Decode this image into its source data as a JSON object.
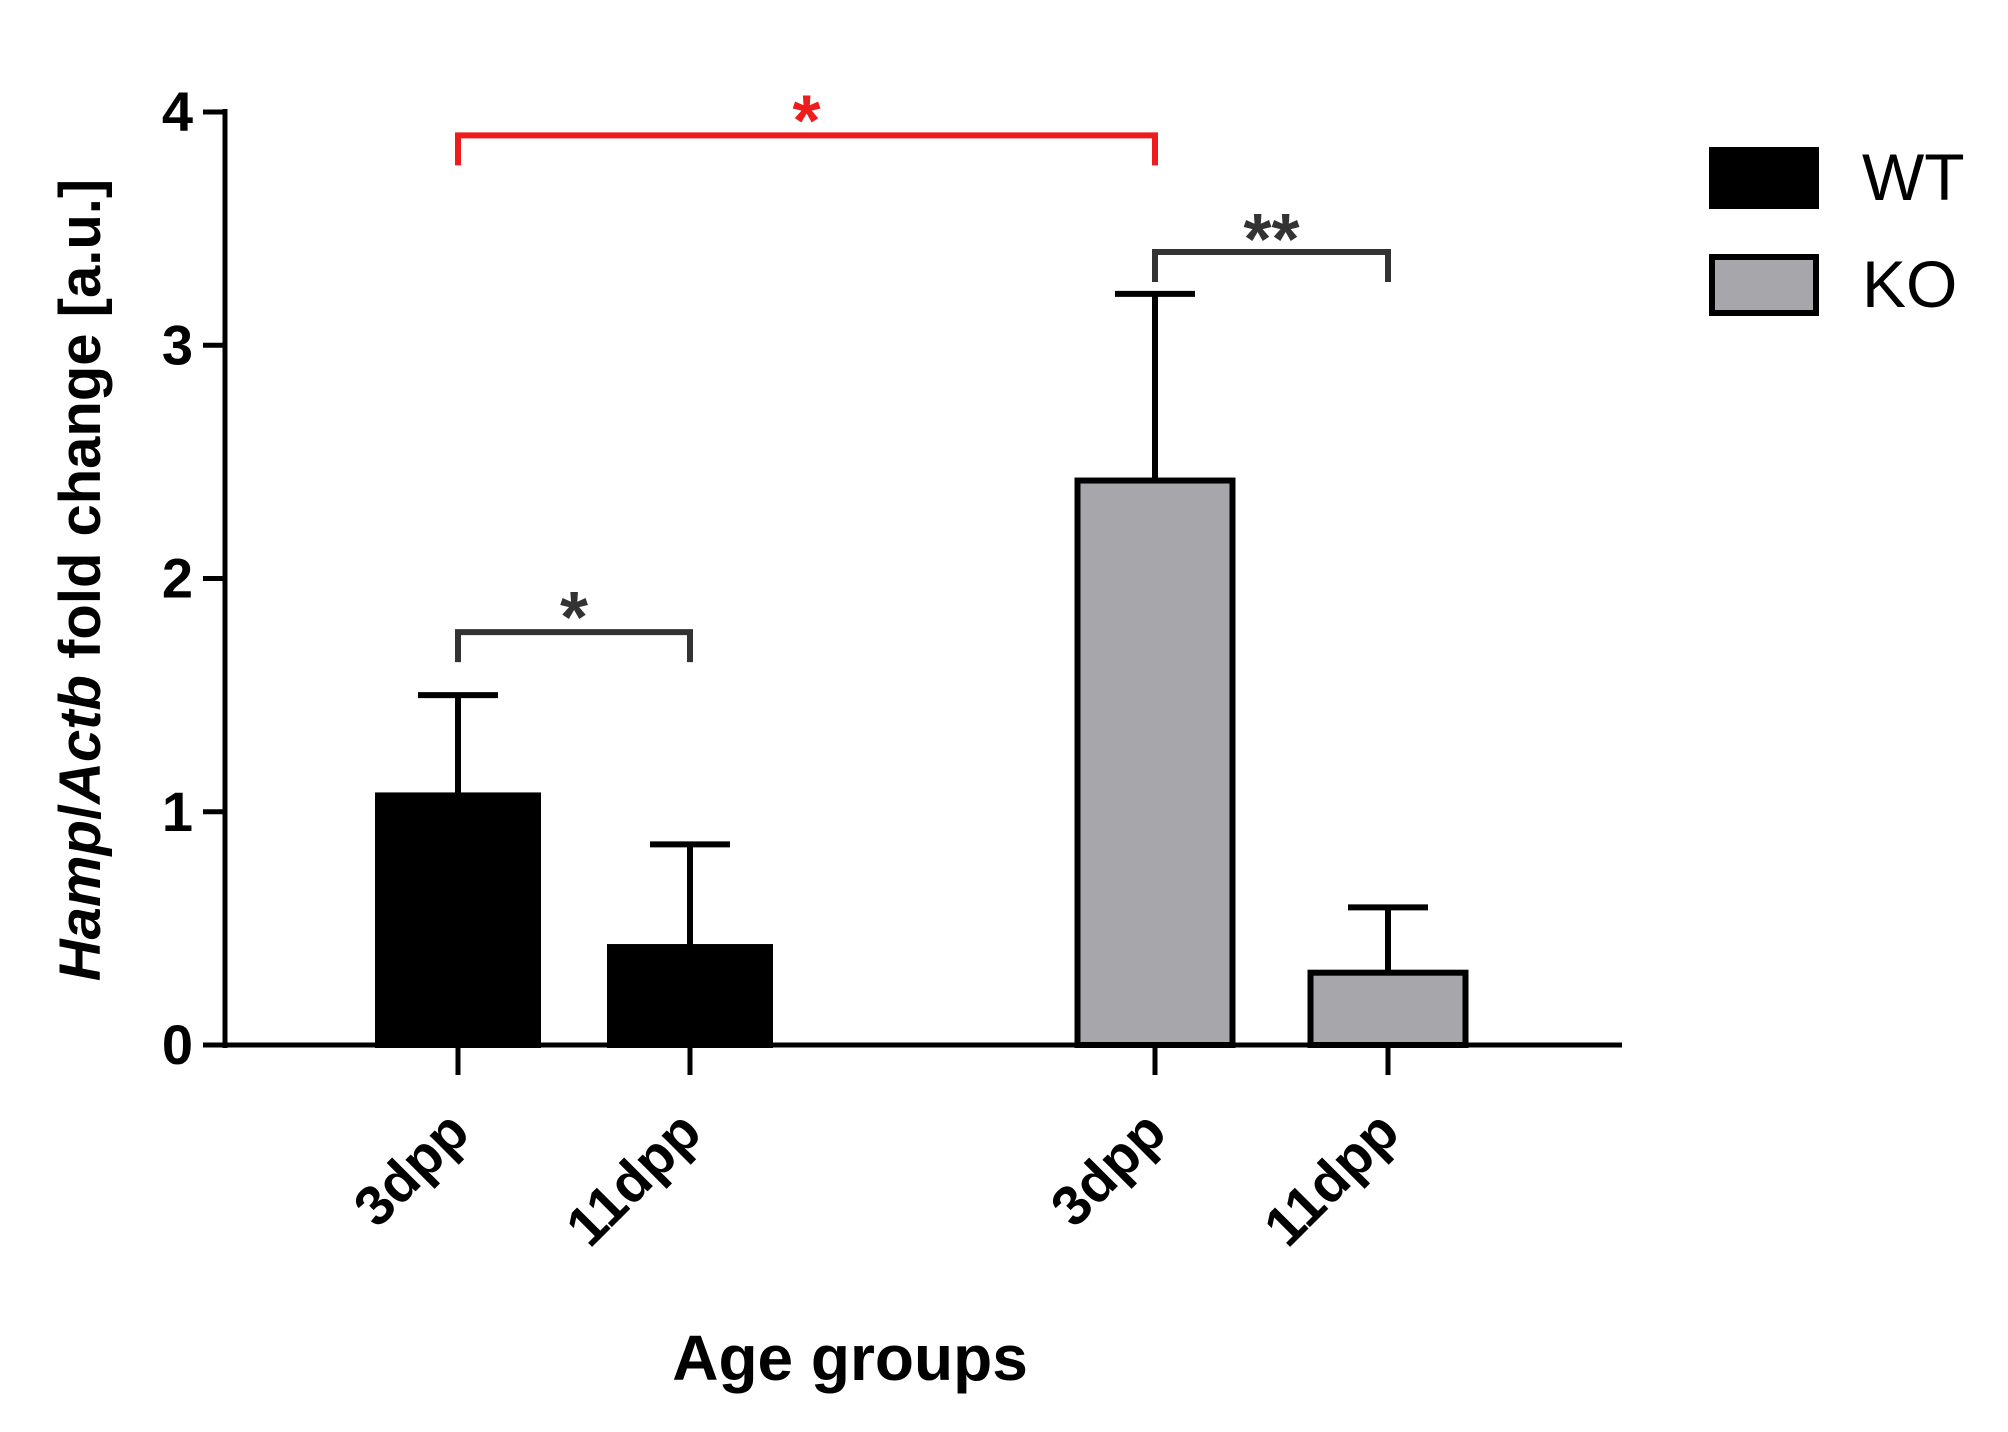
{
  "chart_data": {
    "type": "bar",
    "title": "",
    "xlabel": "Age groups",
    "ylabel_parts": [
      "Hamp",
      "/",
      "Actb",
      " fold change [a.u.]"
    ],
    "ylim": [
      0,
      4
    ],
    "yticks": [
      0,
      1,
      2,
      3,
      4
    ],
    "grid": false,
    "legend_position": "top-right",
    "colors": {
      "WT": "#000000",
      "KO": "#a7a6ab",
      "sig_red": "#ee1c1c",
      "sig_dark": "#333333"
    },
    "series": [
      {
        "name": "WT",
        "categories": [
          "3dpp",
          "11dpp"
        ],
        "values": [
          1.07,
          0.42
        ],
        "errors": [
          0.43,
          0.44
        ]
      },
      {
        "name": "KO",
        "categories": [
          "3dpp",
          "11dpp"
        ],
        "values": [
          2.42,
          0.31
        ],
        "errors": [
          0.8,
          0.28
        ]
      }
    ],
    "annotations": [
      {
        "label": "*",
        "from": [
          "WT",
          0
        ],
        "to": [
          "KO",
          0
        ],
        "y": 3.9,
        "color": "red"
      },
      {
        "label": "**",
        "from": [
          "KO",
          0
        ],
        "to": [
          "KO",
          1
        ],
        "y": 3.4,
        "color": "dark"
      },
      {
        "label": "*",
        "from": [
          "WT",
          0
        ],
        "to": [
          "WT",
          1
        ],
        "y": 1.77,
        "color": "dark"
      }
    ]
  }
}
